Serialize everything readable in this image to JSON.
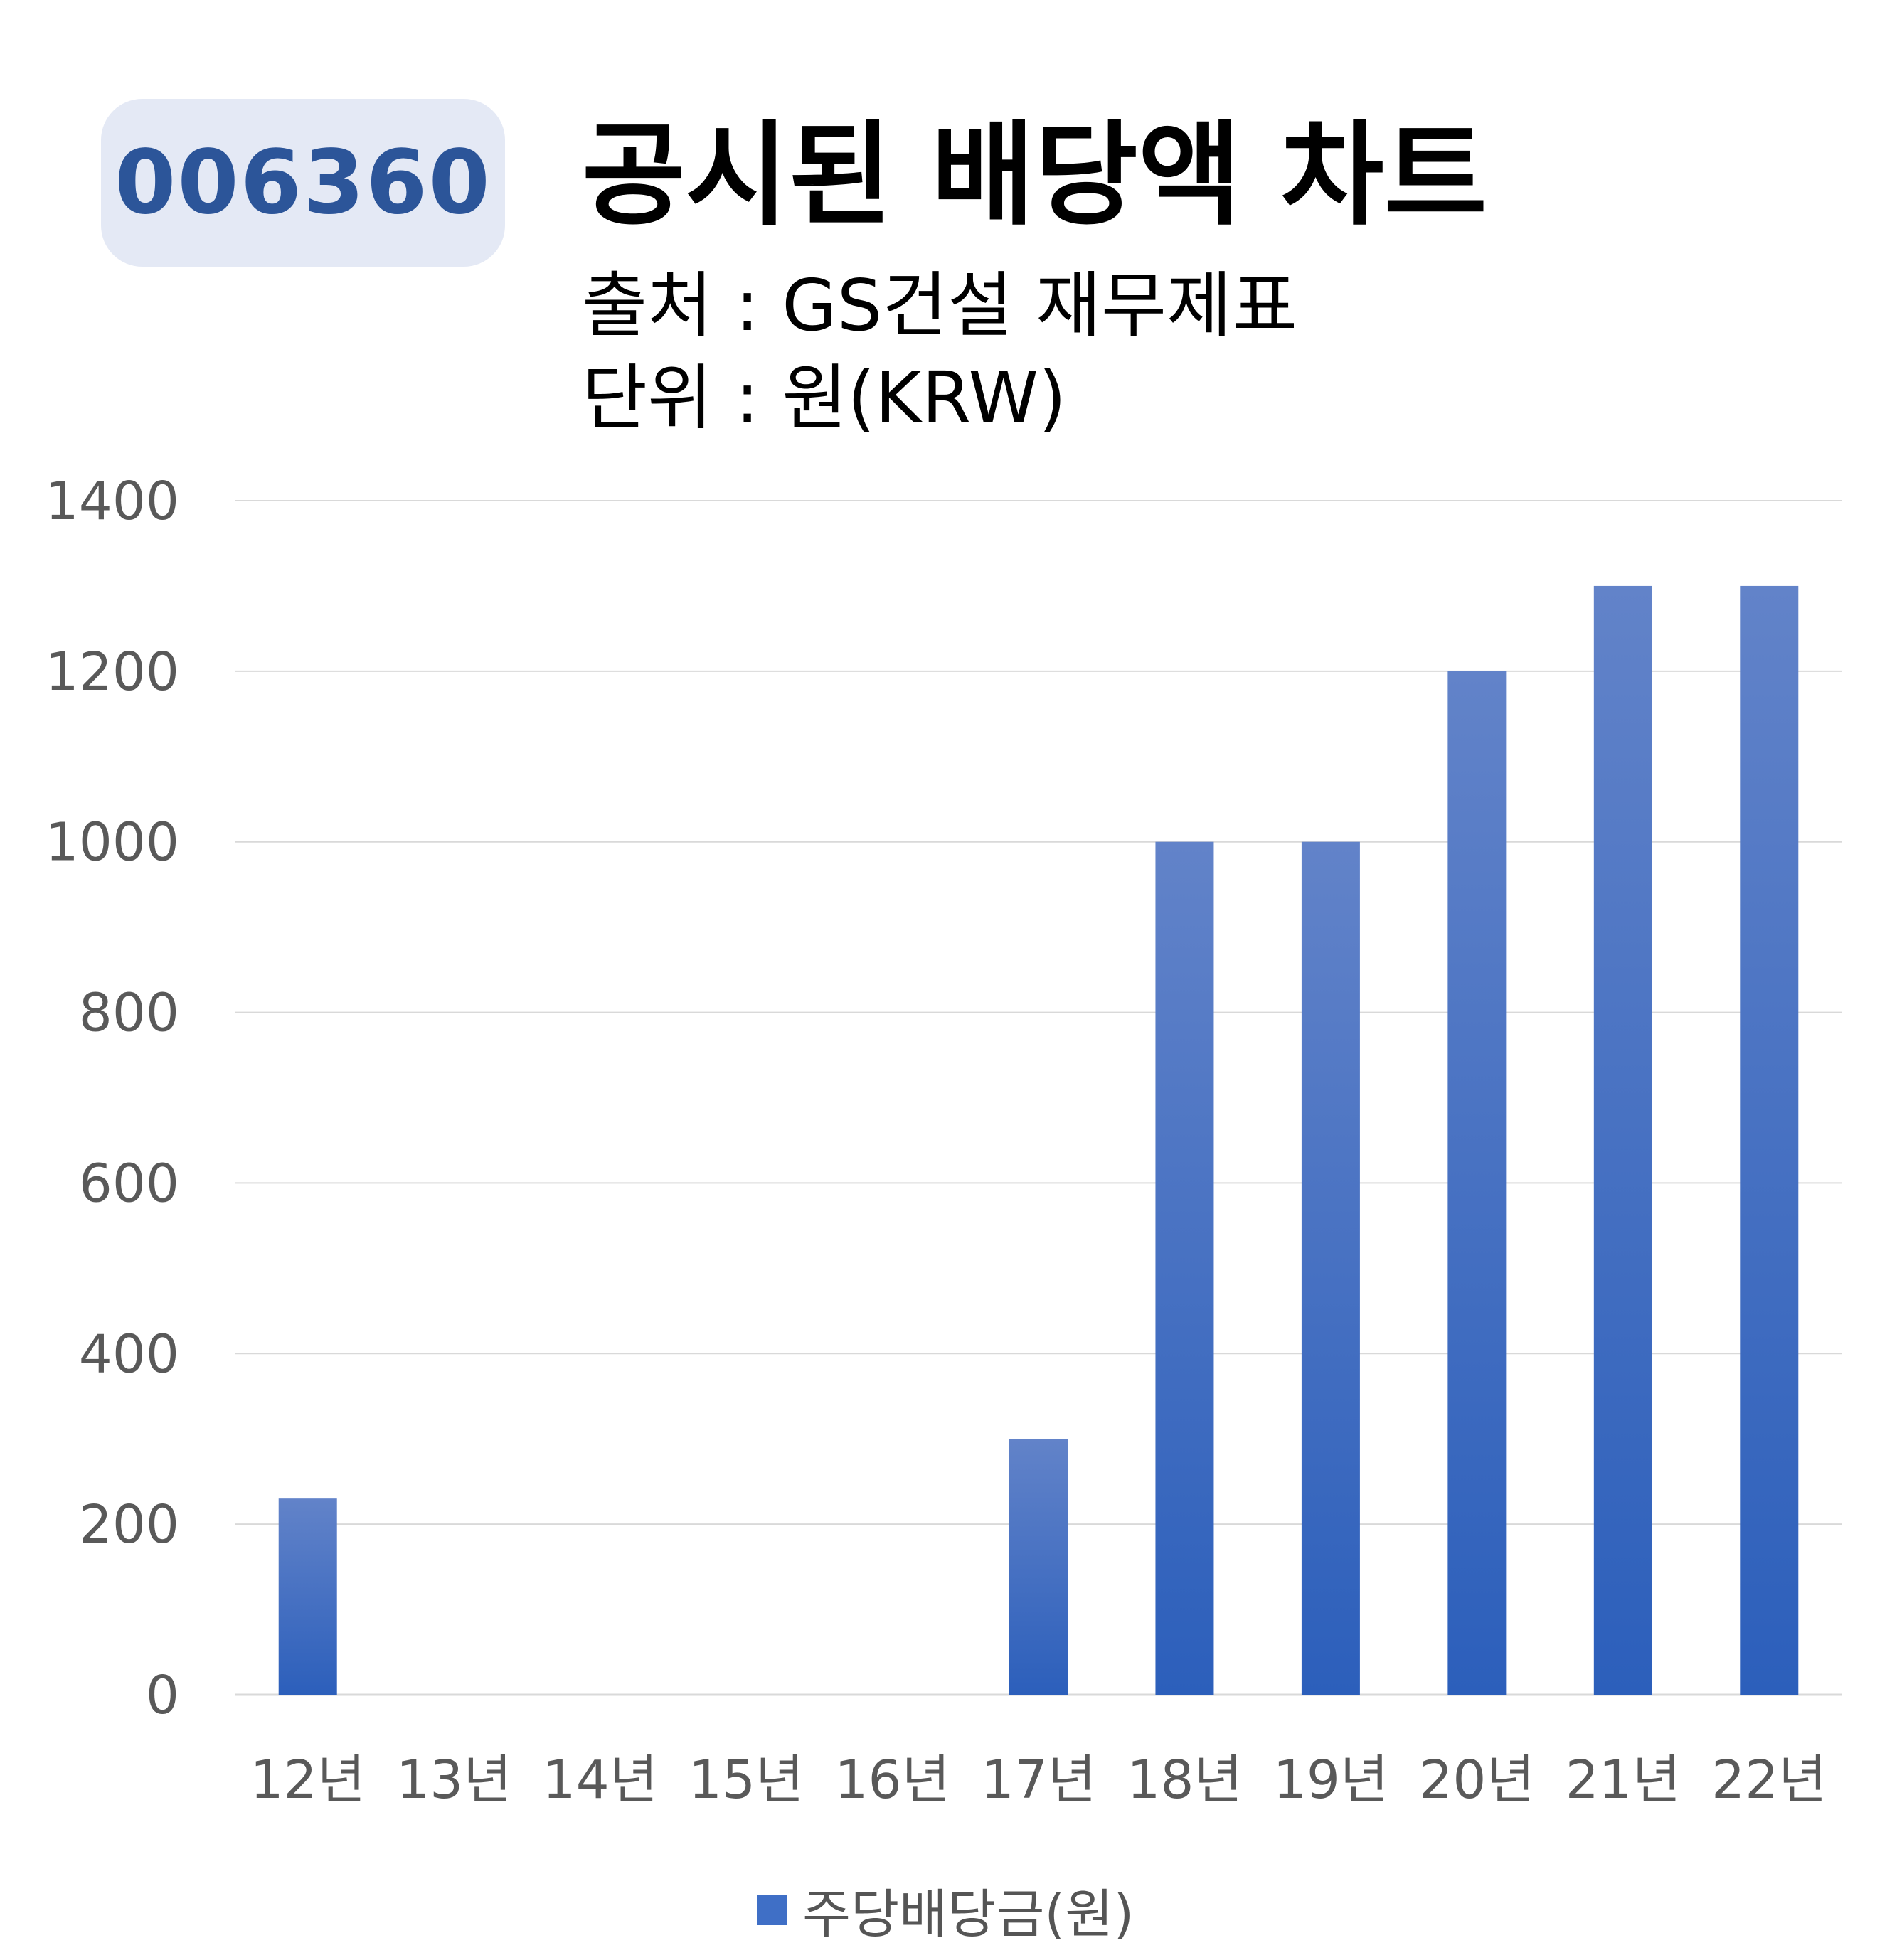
{
  "header": {
    "ticker": "006360",
    "title": "공시된 배당액 차트",
    "source_line": "출처 : GS건설 재무제표",
    "unit_line": "단위 : 원(KRW)"
  },
  "colors": {
    "bar_top": "#6283c9",
    "bar_bottom": "#2c5fbb",
    "grid": "#d9d9d9",
    "axis_text": "#595959",
    "badge_bg": "#e4e9f5",
    "badge_text": "#2c5599"
  },
  "chart_data": {
    "type": "bar",
    "title": "공시된 배당액 차트",
    "xlabel": "",
    "ylabel": "",
    "ylim": [
      0,
      1400
    ],
    "yticks": [
      0,
      200,
      400,
      600,
      800,
      1000,
      1200,
      1400
    ],
    "grid": true,
    "legend_position": "bottom",
    "categories": [
      "12년",
      "13년",
      "14년",
      "15년",
      "16년",
      "17년",
      "18년",
      "19년",
      "20년",
      "21년",
      "22년"
    ],
    "series": [
      {
        "name": "주당배당금(원)",
        "values": [
          230,
          0,
          0,
          0,
          0,
          300,
          1000,
          1000,
          1200,
          1300,
          1300
        ]
      }
    ]
  }
}
